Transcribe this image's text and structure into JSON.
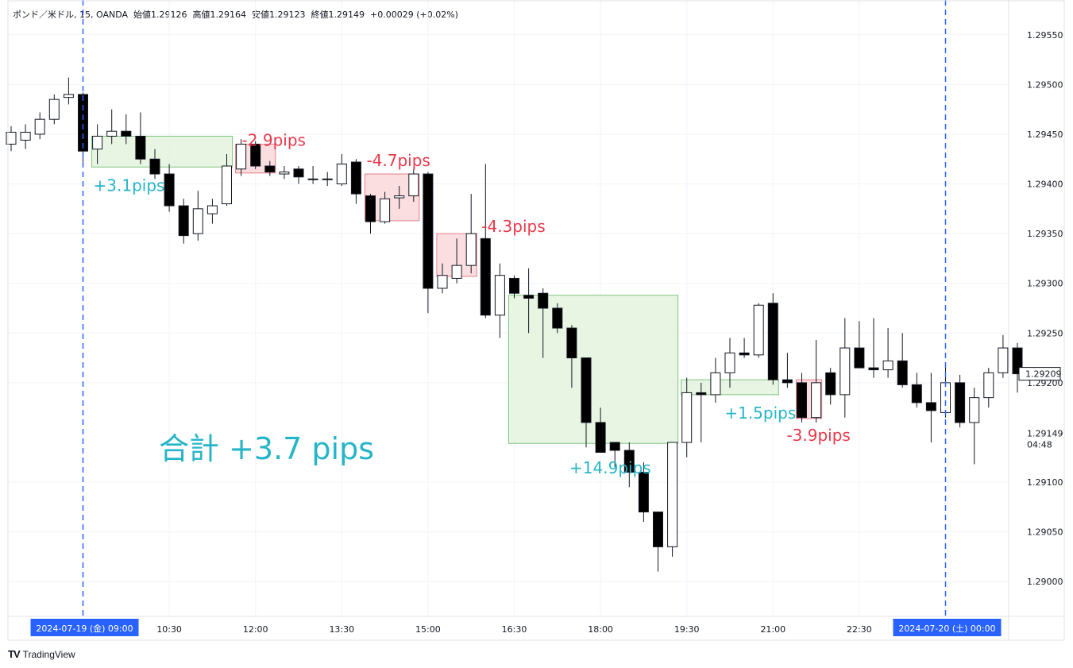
{
  "header": {
    "symbol": "ポンド／米ドル, 15, OANDA",
    "open_label": "始値",
    "open_value": "1.29126",
    "high_label": "高値",
    "high_value": "1.29164",
    "low_label": "安値",
    "low_value": "1.29123",
    "close_label": "終値",
    "close_value": "1.29149",
    "change": "+0.00029 (+0.02%)"
  },
  "brand": {
    "logo": "TV",
    "name": "TradingView"
  },
  "summary_text": "合計 +3.7 pips",
  "colors": {
    "bull_body": "#ffffff",
    "bear_body": "#000000",
    "wick": "#131722",
    "profit_fill": "#e6f4e0",
    "profit_stroke": "#7cc77c",
    "loss_fill": "#fadadd",
    "loss_stroke": "#e57f8a",
    "profit_text": "#26b5c8",
    "loss_text": "#e8394b",
    "session_line": "#2962ff",
    "axis_badge": "#2962ff"
  },
  "price_axis": {
    "ticks": [
      "1.29550",
      "1.29500",
      "1.29450",
      "1.29400",
      "1.29350",
      "1.29300",
      "1.29250",
      "1.29200",
      "1.29100",
      "1.29050",
      "1.29000"
    ],
    "tick_values": [
      1.2955,
      1.295,
      1.2945,
      1.294,
      1.2935,
      1.293,
      1.2925,
      1.292,
      1.291,
      1.2905,
      1.29
    ],
    "current_price": "1.29209",
    "current_price_value": 1.29209,
    "last_price": "1.29149",
    "last_price_value": 1.29149,
    "countdown": "04:48"
  },
  "time_axis": {
    "labels": [
      {
        "text": "10:30",
        "bar": 11
      },
      {
        "text": "12:00",
        "bar": 17
      },
      {
        "text": "13:30",
        "bar": 23
      },
      {
        "text": "15:00",
        "bar": 29
      },
      {
        "text": "16:30",
        "bar": 35
      },
      {
        "text": "18:00",
        "bar": 41
      },
      {
        "text": "19:30",
        "bar": 47
      },
      {
        "text": "21:00",
        "bar": 53
      },
      {
        "text": "22:30",
        "bar": 59
      }
    ],
    "badges": [
      {
        "text": "2024-07-19 (金)    09:00",
        "bar": 5
      },
      {
        "text": "2024-07-20 (土)    00:00",
        "bar": 65
      }
    ]
  },
  "chart_data": {
    "type": "candlestick",
    "symbol": "ポンド／米ドル",
    "interval": "15",
    "ylim": [
      1.28965,
      1.29585
    ],
    "candles": [
      {
        "o": 1.2944,
        "h": 1.29458,
        "l": 1.29433,
        "c": 1.29452
      },
      {
        "o": 1.29444,
        "h": 1.2946,
        "l": 1.29435,
        "c": 1.29452
      },
      {
        "o": 1.2945,
        "h": 1.29472,
        "l": 1.29445,
        "c": 1.29465
      },
      {
        "o": 1.29465,
        "h": 1.2949,
        "l": 1.2946,
        "c": 1.29485
      },
      {
        "o": 1.29487,
        "h": 1.29507,
        "l": 1.2948,
        "c": 1.2949
      },
      {
        "o": 1.2949,
        "h": 1.29492,
        "l": 1.2942,
        "c": 1.29433
      },
      {
        "o": 1.29435,
        "h": 1.2946,
        "l": 1.2942,
        "c": 1.29448
      },
      {
        "o": 1.29448,
        "h": 1.29475,
        "l": 1.2944,
        "c": 1.29453
      },
      {
        "o": 1.29453,
        "h": 1.2947,
        "l": 1.2944,
        "c": 1.29448
      },
      {
        "o": 1.29448,
        "h": 1.29472,
        "l": 1.2942,
        "c": 1.29425
      },
      {
        "o": 1.29425,
        "h": 1.29435,
        "l": 1.29405,
        "c": 1.2941
      },
      {
        "o": 1.2941,
        "h": 1.2942,
        "l": 1.29372,
        "c": 1.29378
      },
      {
        "o": 1.29378,
        "h": 1.29385,
        "l": 1.2934,
        "c": 1.29348
      },
      {
        "o": 1.2935,
        "h": 1.29393,
        "l": 1.29343,
        "c": 1.29375
      },
      {
        "o": 1.2937,
        "h": 1.29385,
        "l": 1.2936,
        "c": 1.29378
      },
      {
        "o": 1.2938,
        "h": 1.2943,
        "l": 1.29378,
        "c": 1.29418
      },
      {
        "o": 1.29415,
        "h": 1.29445,
        "l": 1.29408,
        "c": 1.2944
      },
      {
        "o": 1.2944,
        "h": 1.29443,
        "l": 1.29415,
        "c": 1.29418
      },
      {
        "o": 1.29418,
        "h": 1.29423,
        "l": 1.29408,
        "c": 1.29412
      },
      {
        "o": 1.2941,
        "h": 1.29418,
        "l": 1.29405,
        "c": 1.29412
      },
      {
        "o": 1.29415,
        "h": 1.29418,
        "l": 1.294,
        "c": 1.29407
      },
      {
        "o": 1.29405,
        "h": 1.29418,
        "l": 1.294,
        "c": 1.29405
      },
      {
        "o": 1.29405,
        "h": 1.29412,
        "l": 1.29398,
        "c": 1.29405
      },
      {
        "o": 1.294,
        "h": 1.2943,
        "l": 1.29398,
        "c": 1.2942
      },
      {
        "o": 1.29422,
        "h": 1.29425,
        "l": 1.2938,
        "c": 1.2939
      },
      {
        "o": 1.29388,
        "h": 1.2939,
        "l": 1.2935,
        "c": 1.29362
      },
      {
        "o": 1.29362,
        "h": 1.29392,
        "l": 1.2936,
        "c": 1.29385
      },
      {
        "o": 1.29386,
        "h": 1.29398,
        "l": 1.29375,
        "c": 1.29388
      },
      {
        "o": 1.29388,
        "h": 1.29415,
        "l": 1.29382,
        "c": 1.2941
      },
      {
        "o": 1.2941,
        "h": 1.29412,
        "l": 1.2927,
        "c": 1.29295
      },
      {
        "o": 1.29295,
        "h": 1.2932,
        "l": 1.2929,
        "c": 1.29308
      },
      {
        "o": 1.29305,
        "h": 1.29345,
        "l": 1.293,
        "c": 1.29318
      },
      {
        "o": 1.29318,
        "h": 1.2939,
        "l": 1.2931,
        "c": 1.2935
      },
      {
        "o": 1.29345,
        "h": 1.2942,
        "l": 1.29265,
        "c": 1.29268
      },
      {
        "o": 1.29268,
        "h": 1.2932,
        "l": 1.29245,
        "c": 1.29308
      },
      {
        "o": 1.29305,
        "h": 1.29308,
        "l": 1.29285,
        "c": 1.2929
      },
      {
        "o": 1.29288,
        "h": 1.29315,
        "l": 1.2925,
        "c": 1.29285
      },
      {
        "o": 1.2929,
        "h": 1.29295,
        "l": 1.29225,
        "c": 1.29275
      },
      {
        "o": 1.29275,
        "h": 1.2928,
        "l": 1.2925,
        "c": 1.29255
      },
      {
        "o": 1.29255,
        "h": 1.29258,
        "l": 1.29195,
        "c": 1.29225
      },
      {
        "o": 1.29225,
        "h": 1.29225,
        "l": 1.29135,
        "c": 1.2916
      },
      {
        "o": 1.2916,
        "h": 1.29175,
        "l": 1.2913,
        "c": 1.2913
      },
      {
        "o": 1.2914,
        "h": 1.2914,
        "l": 1.29115,
        "c": 1.29132
      },
      {
        "o": 1.29132,
        "h": 1.2914,
        "l": 1.29095,
        "c": 1.2911
      },
      {
        "o": 1.2911,
        "h": 1.2912,
        "l": 1.2906,
        "c": 1.2907
      },
      {
        "o": 1.2907,
        "h": 1.2907,
        "l": 1.2901,
        "c": 1.29035
      },
      {
        "o": 1.29035,
        "h": 1.2914,
        "l": 1.29025,
        "c": 1.2914
      },
      {
        "o": 1.2914,
        "h": 1.29205,
        "l": 1.29125,
        "c": 1.2919
      },
      {
        "o": 1.2919,
        "h": 1.292,
        "l": 1.2914,
        "c": 1.29188
      },
      {
        "o": 1.29188,
        "h": 1.29225,
        "l": 1.2918,
        "c": 1.2921
      },
      {
        "o": 1.2921,
        "h": 1.29245,
        "l": 1.29195,
        "c": 1.2923
      },
      {
        "o": 1.2923,
        "h": 1.29245,
        "l": 1.29225,
        "c": 1.29228
      },
      {
        "o": 1.29228,
        "h": 1.2928,
        "l": 1.29225,
        "c": 1.29278
      },
      {
        "o": 1.2928,
        "h": 1.2929,
        "l": 1.29198,
        "c": 1.29203
      },
      {
        "o": 1.29203,
        "h": 1.2923,
        "l": 1.29195,
        "c": 1.292
      },
      {
        "o": 1.292,
        "h": 1.2921,
        "l": 1.2916,
        "c": 1.29165
      },
      {
        "o": 1.29165,
        "h": 1.29243,
        "l": 1.2916,
        "c": 1.292
      },
      {
        "o": 1.2921,
        "h": 1.29215,
        "l": 1.29178,
        "c": 1.29188
      },
      {
        "o": 1.29188,
        "h": 1.29265,
        "l": 1.29165,
        "c": 1.29235
      },
      {
        "o": 1.29235,
        "h": 1.29262,
        "l": 1.29215,
        "c": 1.29215
      },
      {
        "o": 1.29215,
        "h": 1.29265,
        "l": 1.29205,
        "c": 1.29213
      },
      {
        "o": 1.29213,
        "h": 1.29255,
        "l": 1.29205,
        "c": 1.29222
      },
      {
        "o": 1.29222,
        "h": 1.2925,
        "l": 1.29195,
        "c": 1.29198
      },
      {
        "o": 1.29198,
        "h": 1.2921,
        "l": 1.29175,
        "c": 1.2918
      },
      {
        "o": 1.2918,
        "h": 1.2921,
        "l": 1.2914,
        "c": 1.29172
      },
      {
        "o": 1.2917,
        "h": 1.2922,
        "l": 1.29165,
        "c": 1.292
      },
      {
        "o": 1.292,
        "h": 1.29208,
        "l": 1.29155,
        "c": 1.2916
      },
      {
        "o": 1.2916,
        "h": 1.29195,
        "l": 1.29118,
        "c": 1.29185
      },
      {
        "o": 1.29185,
        "h": 1.29215,
        "l": 1.29175,
        "c": 1.2921
      },
      {
        "o": 1.2921,
        "h": 1.29248,
        "l": 1.29205,
        "c": 1.29235
      },
      {
        "o": 1.29235,
        "h": 1.2924,
        "l": 1.2919,
        "c": 1.29209
      }
    ],
    "trades": [
      {
        "result": "profit",
        "label": "+3.1pips",
        "bar_start": 6,
        "bar_end": 15,
        "top": 1.29448,
        "bottom": 1.29417,
        "label_pos": "below-left"
      },
      {
        "result": "loss",
        "label": "-2.9pips",
        "bar_start": 16,
        "bar_end": 18,
        "top": 1.2944,
        "bottom": 1.29411,
        "label_pos": "above-right"
      },
      {
        "result": "loss",
        "label": "-4.7pips",
        "bar_start": 25,
        "bar_end": 28,
        "top": 1.2941,
        "bottom": 1.29363,
        "label_pos": "above"
      },
      {
        "result": "loss",
        "label": "-4.3pips",
        "bar_start": 30,
        "bar_end": 32,
        "top": 1.2935,
        "bottom": 1.29307,
        "label_pos": "right"
      },
      {
        "result": "profit",
        "label": "+14.9pips",
        "bar_start": 35,
        "bar_end": 46,
        "top": 1.29288,
        "bottom": 1.29139,
        "label_pos": "below"
      },
      {
        "result": "profit",
        "label": "+1.5pips",
        "bar_start": 47,
        "bar_end": 53,
        "top": 1.29203,
        "bottom": 1.29188,
        "label_pos": "below-right"
      },
      {
        "result": "loss",
        "label": "-3.9pips",
        "bar_start": 55,
        "bar_end": 56,
        "top": 1.29203,
        "bottom": 1.29164,
        "label_pos": "below"
      }
    ],
    "session_lines_bars": [
      5,
      65
    ],
    "grid": true
  }
}
